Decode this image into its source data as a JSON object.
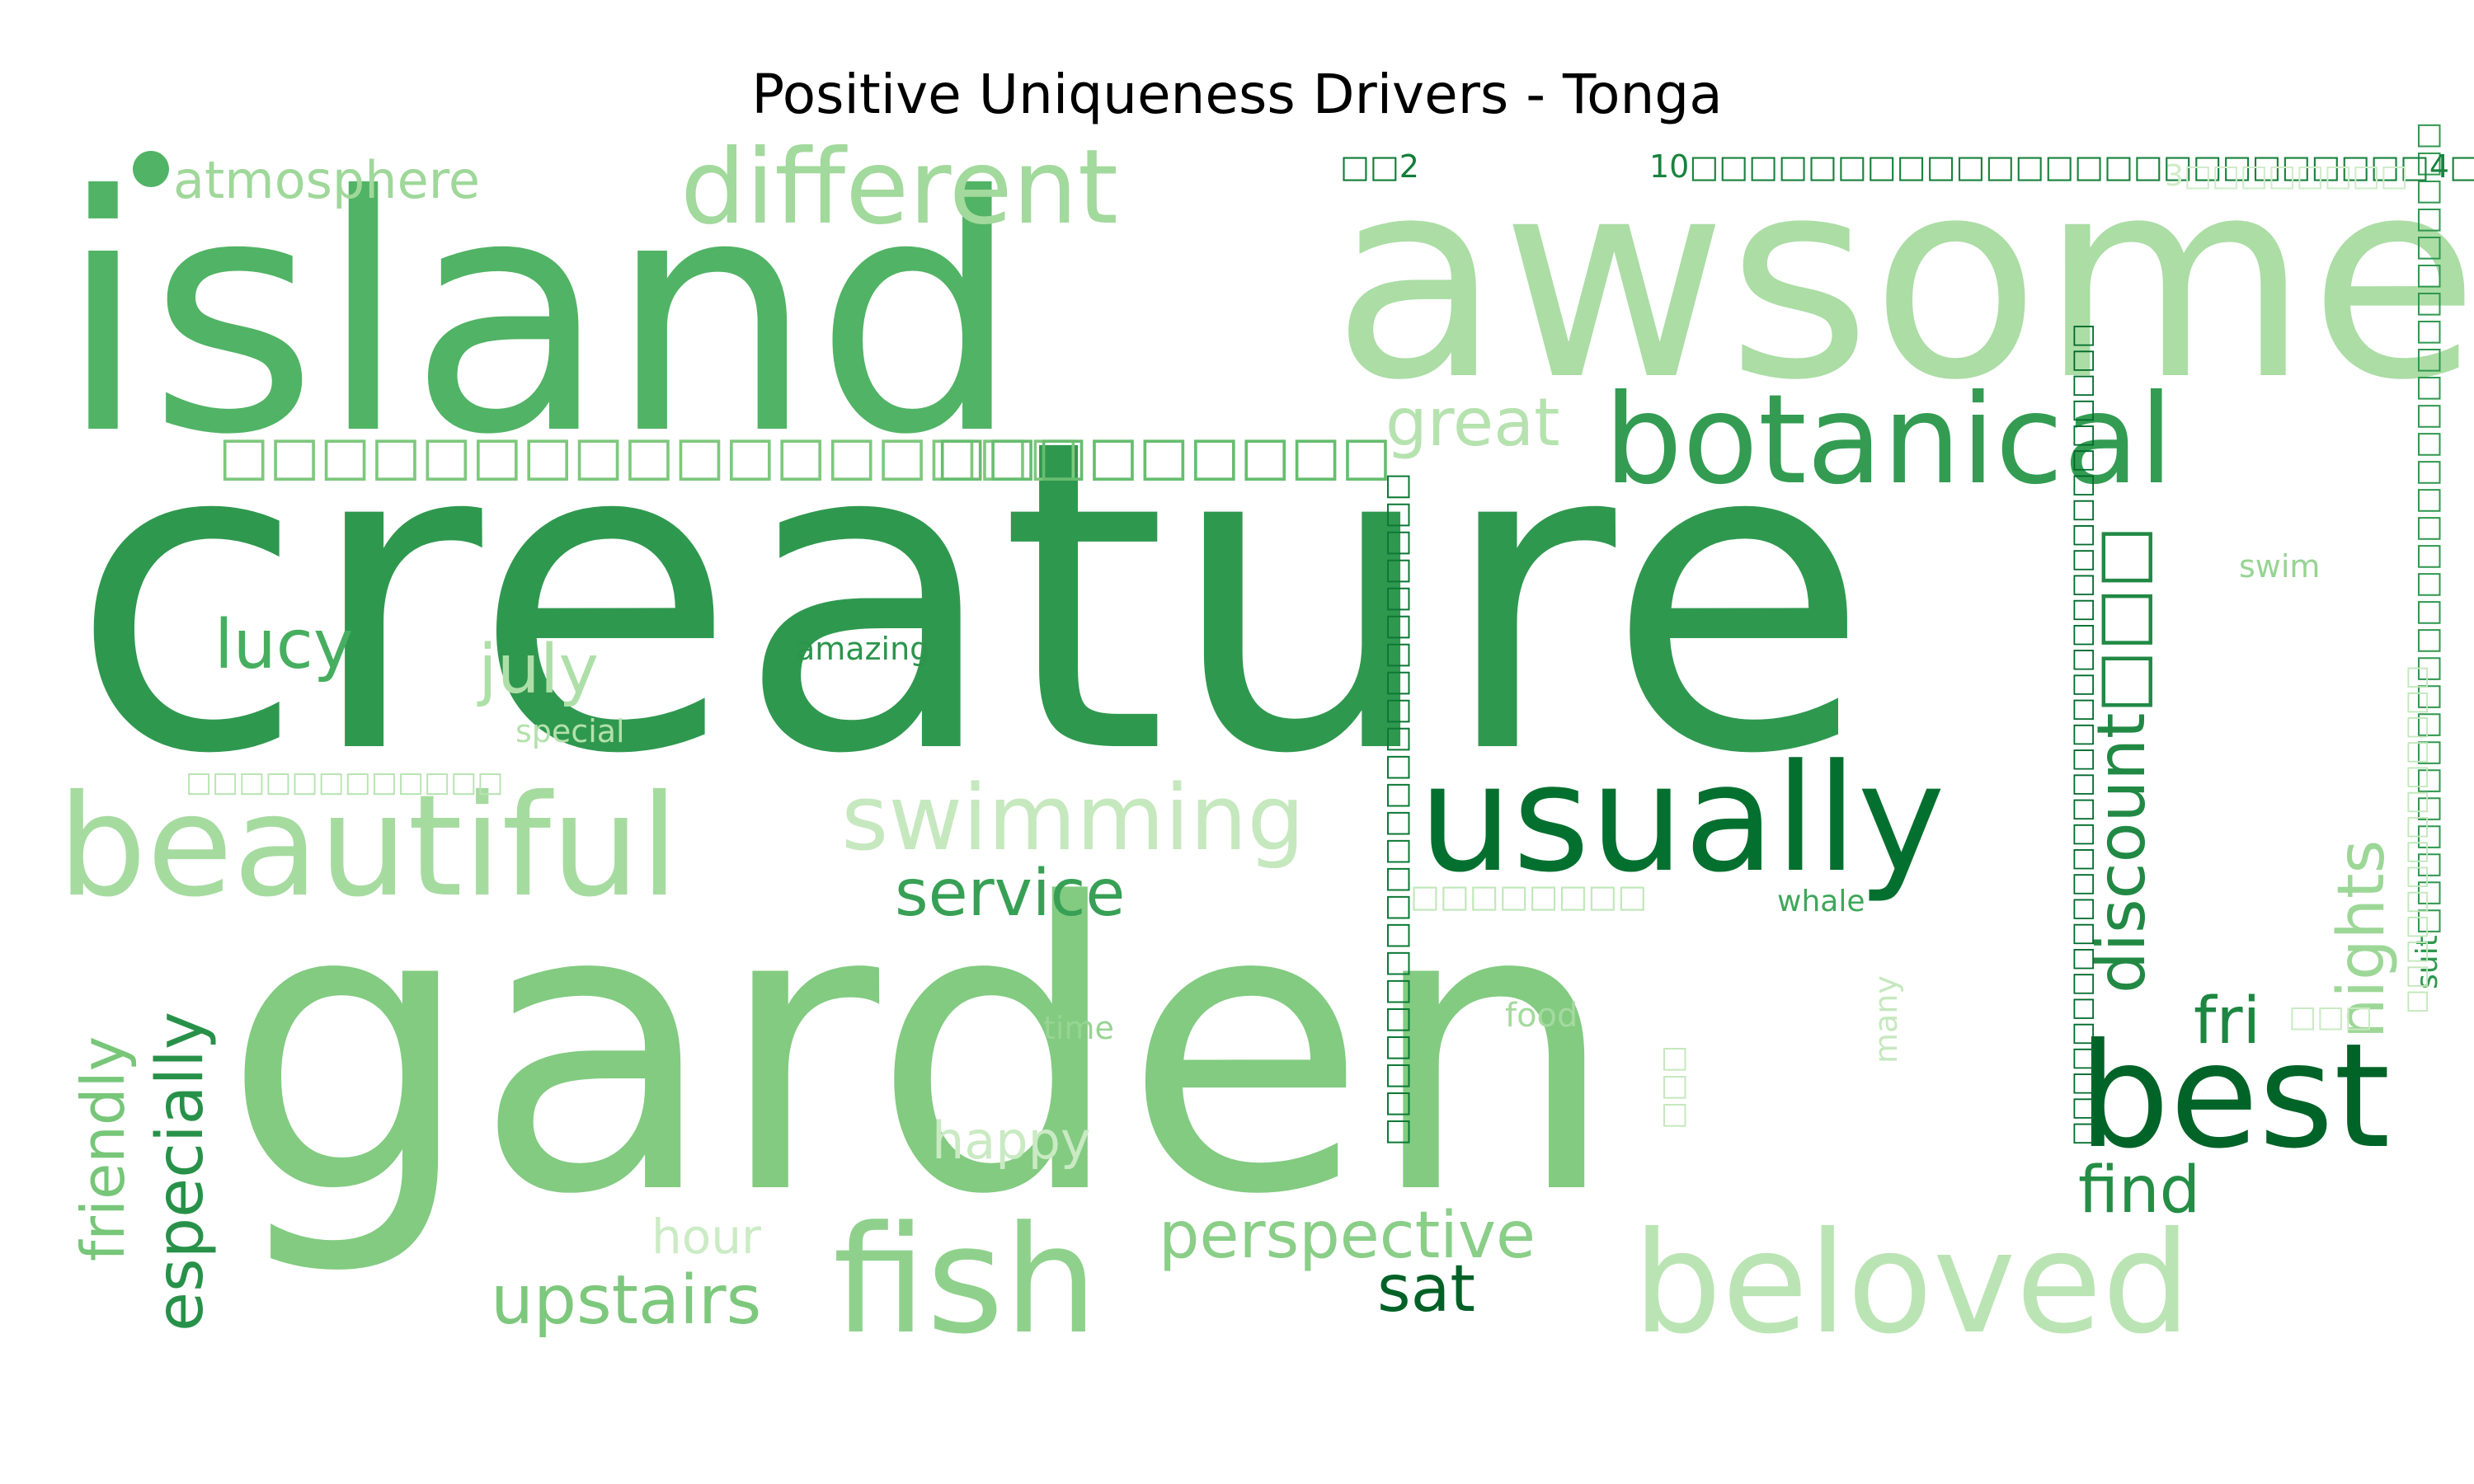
{
  "title": "Positive Uniqueness Drivers - Tonga",
  "colormap": "Greens",
  "words": [
    {
      "text": "creature",
      "tone": 0.7
    },
    {
      "text": "garden",
      "tone": 0.38
    },
    {
      "text": "island",
      "tone": 0.55
    },
    {
      "text": "awsome",
      "tone": 0.22
    },
    {
      "text": "botanical",
      "tone": 0.68
    },
    {
      "text": "usually",
      "tone": 0.92
    },
    {
      "text": "best",
      "tone": 0.98
    },
    {
      "text": "fish",
      "tone": 0.33
    },
    {
      "text": "beloved",
      "tone": 0.15
    },
    {
      "text": "beautiful",
      "tone": 0.24
    },
    {
      "text": "different",
      "tone": 0.26
    },
    {
      "text": "swimming",
      "tone": 0.1
    },
    {
      "text": "discount□□□",
      "tone": 0.78
    },
    {
      "text": "nights",
      "tone": 0.28
    },
    {
      "text": "especially",
      "tone": 0.74
    },
    {
      "text": "friendly",
      "tone": 0.42
    },
    {
      "text": "upstairs",
      "tone": 0.4
    },
    {
      "text": "perspective",
      "tone": 0.35
    },
    {
      "text": "service",
      "tone": 0.66
    },
    {
      "text": "lucy",
      "tone": 0.58
    },
    {
      "text": "july",
      "tone": 0.2
    },
    {
      "text": "great",
      "tone": 0.17
    },
    {
      "text": "atmosphere",
      "tone": 0.27
    },
    {
      "text": "find",
      "tone": 0.76
    },
    {
      "text": "fri",
      "tone": 0.8
    },
    {
      "text": "sat",
      "tone": 0.99
    },
    {
      "text": "happy",
      "tone": 0.08
    },
    {
      "text": "hour",
      "tone": 0.07
    },
    {
      "text": "whale",
      "tone": 0.62
    },
    {
      "text": "amazing",
      "tone": 0.72
    },
    {
      "text": "special",
      "tone": 0.18
    },
    {
      "text": "time",
      "tone": 0.3
    },
    {
      "text": "food",
      "tone": 0.25
    },
    {
      "text": "swim",
      "tone": 0.3
    },
    {
      "text": "many",
      "tone": 0.1
    },
    {
      "text": "suit□□□□□□□□□□□□□□□□□□□□□□□□□□□□□",
      "tone": 0.7
    },
    {
      "text": "□□2",
      "tone": 0.85
    },
    {
      "text": "10□□□□□□□□□□□□□□□□□□□□□□□□□4□",
      "tone": 0.82
    },
    {
      "text": "3□□□□□□□□",
      "tone": 0.05
    },
    {
      "text": "□□□□□□□□□□□□□□□□□",
      "tone": 0.4
    },
    {
      "text": "□□□□□□□□□",
      "tone": 0.48
    },
    {
      "text": "□□□□□□□□□□□□",
      "tone": 0.16
    },
    {
      "text": "□□□□□□□□",
      "tone": 0.12
    },
    {
      "text": "□□□□□□□□□□□□□□□□□□□□□□□□",
      "tone": 0.88
    },
    {
      "text": "□□□□□□□□□□□□□□□□□□□□□□□□□□□□□□□□□",
      "tone": 0.95
    },
    {
      "text": "□□□□□□□□□□□□□□",
      "tone": 0.12
    },
    {
      "text": "□□□",
      "tone": 0.1
    },
    {
      "text": "□□□",
      "tone": 0.08
    }
  ]
}
